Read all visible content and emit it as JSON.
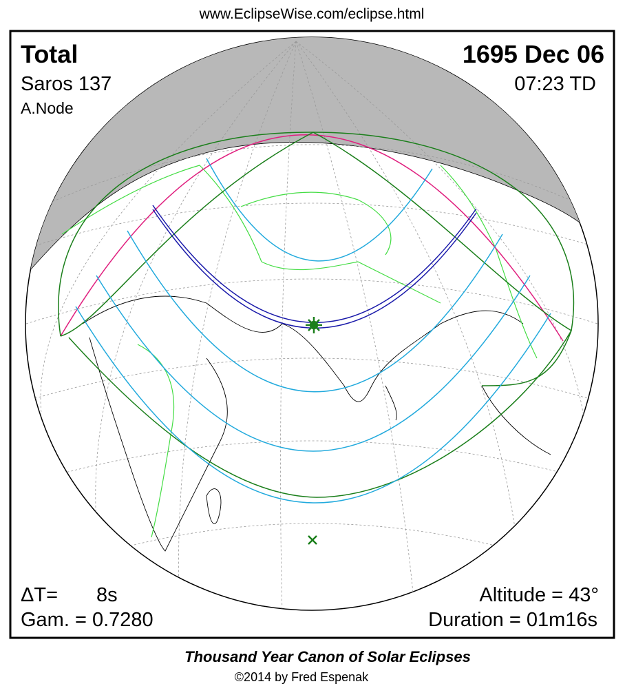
{
  "header": {
    "url": "www.EclipseWise.com/eclipse.html"
  },
  "info": {
    "eclipse_type": "Total",
    "date": "1695 Dec 06",
    "saros": "Saros 137",
    "time": "07:23 TD",
    "node": "A.Node",
    "delta_t_label": "ΔT=",
    "delta_t_value": "8s",
    "gamma": "Gam. = 0.7280",
    "altitude": "Altitude = 43°",
    "duration": "Duration = 01m16s"
  },
  "footer": {
    "title": "Thousand Year Canon of Solar Eclipses",
    "copyright": "©2014 by Fred Espenak"
  }
}
